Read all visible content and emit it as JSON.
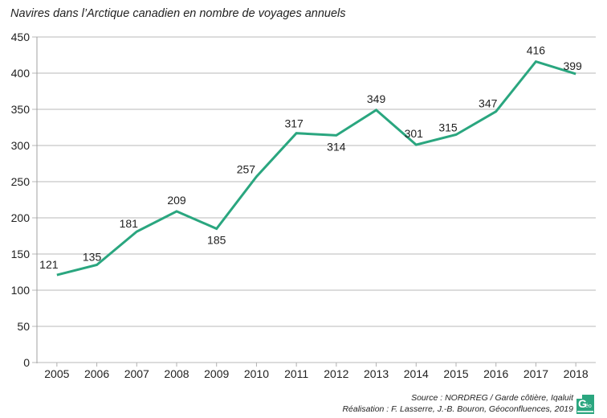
{
  "chart_data": {
    "type": "line",
    "title": "Navires dans l’Arctique canadien en nombre de voyages annuels",
    "xlabel": "",
    "ylabel": "",
    "categories": [
      "2005",
      "2006",
      "2007",
      "2008",
      "2009",
      "2010",
      "2011",
      "2012",
      "2013",
      "2014",
      "2015",
      "2016",
      "2017",
      "2018"
    ],
    "series": [
      {
        "name": "Voyages annuels",
        "values": [
          121,
          135,
          181,
          209,
          185,
          257,
          317,
          314,
          349,
          301,
          315,
          347,
          416,
          399
        ],
        "color": "#2aa67f"
      }
    ],
    "ylim": [
      0,
      450
    ],
    "yticks": [
      0,
      50,
      100,
      150,
      200,
      250,
      300,
      350,
      400,
      450
    ],
    "grid": true,
    "legend": "none"
  },
  "footer": {
    "source": "Source : NORDREG / Garde côtière, Iqaluit",
    "credit": "Réalisation : F. Lasserre, J.-B. Bouron, Géoconfluences, 2019"
  },
  "logo": {
    "letter": "G",
    "suffix": "éo",
    "color": "#2aa67f"
  }
}
